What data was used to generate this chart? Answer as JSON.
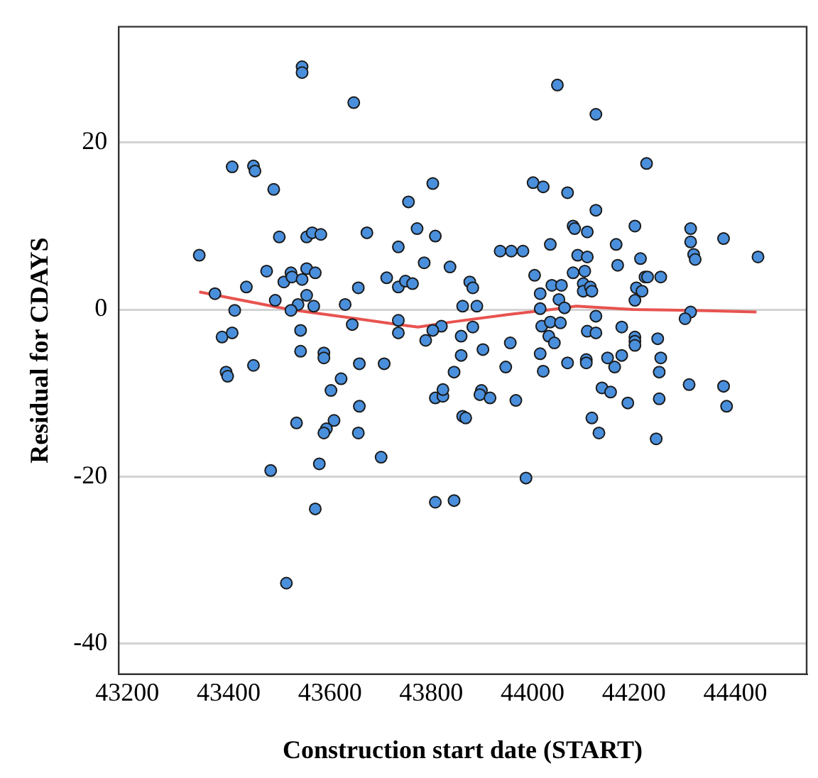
{
  "chart_data": {
    "type": "scatter",
    "xlabel": "Construction start date (START)",
    "ylabel": "Residual for CDAYS",
    "xlim": [
      43183,
      44541
    ],
    "ylim": [
      -43.7,
      33.9
    ],
    "xticks": [
      43200,
      43400,
      43600,
      43800,
      44000,
      44200,
      44400
    ],
    "yticks": [
      -40,
      -20,
      0,
      20
    ],
    "grid": "y",
    "marker": "circle",
    "series": [
      {
        "color": "#4a8fdc",
        "x": [
          43545,
          43545,
          43647,
          43407,
          43449,
          43452,
          43489,
          43803,
          43755,
          43500,
          43554,
          43565,
          43582,
          43673,
          43772,
          43808,
          43735,
          43342,
          43786,
          43837,
          43475,
          43523,
          43554,
          43571,
          43509,
          43525,
          43545,
          43435,
          43712,
          43735,
          43749,
          43763,
          43656,
          43373,
          43554,
          43492,
          43537,
          43568,
          43630,
          43412,
          43523,
          43862,
          43644,
          43735,
          43735,
          43820,
          43803,
          43789,
          43387,
          43407,
          43542,
          43859,
          43542,
          43588,
          43588,
          43395,
          43398,
          43449,
          43658,
          43707,
          43622,
          43602,
          43658,
          43608,
          43593,
          43588,
          43534,
          43656,
          43579,
          43701,
          43483,
          43571,
          43514,
          43808,
          43845,
          43845,
          43859,
          43808,
          43823,
          43823,
          43862,
          44049,
          44125,
          44225,
          44001,
          44021,
          44069,
          44125,
          44080,
          44083,
          44108,
          44202,
          44312,
          44377,
          44312,
          44035,
          44165,
          43936,
          43958,
          43981,
          44089,
          44108,
          44213,
          44318,
          44321,
          44445,
          44168,
          44004,
          44080,
          44103,
          44222,
          44227,
          44253,
          43876,
          43882,
          44038,
          44057,
          44100,
          44100,
          44114,
          44117,
          44015,
          44205,
          44216,
          44052,
          44063,
          43890,
          44202,
          44015,
          44125,
          44312,
          44301,
          43882,
          44018,
          44035,
          44055,
          44176,
          44032,
          44108,
          44125,
          43956,
          44202,
          44202,
          44202,
          44247,
          43902,
          44043,
          43947,
          44015,
          44021,
          44069,
          44106,
          44106,
          44148,
          44176,
          44162,
          44253,
          44250,
          43899,
          43896,
          43916,
          43868,
          43967,
          44137,
          44154,
          44188,
          44250,
          44117,
          44131,
          44244,
          44309,
          44377,
          44383,
          43987
        ],
        "values": [
          29.1,
          28.4,
          24.8,
          17.1,
          17.2,
          16.6,
          14.4,
          15.1,
          12.9,
          8.7,
          8.7,
          9.2,
          9.0,
          9.2,
          9.7,
          8.8,
          7.5,
          6.5,
          5.6,
          5.1,
          4.6,
          4.4,
          4.9,
          4.4,
          3.3,
          3.9,
          3.6,
          2.7,
          3.8,
          2.7,
          3.4,
          3.1,
          2.6,
          1.9,
          1.7,
          1.1,
          0.6,
          0.4,
          0.6,
          -0.1,
          -0.1,
          0.4,
          -1.8,
          -1.3,
          -2.8,
          -2.0,
          -2.5,
          -3.7,
          -3.3,
          -2.8,
          -2.5,
          -3.2,
          -5.0,
          -5.2,
          -5.8,
          -7.5,
          -8.0,
          -6.7,
          -6.5,
          -6.5,
          -8.3,
          -9.7,
          -11.6,
          -13.3,
          -14.3,
          -14.8,
          -13.6,
          -14.8,
          -18.5,
          -17.7,
          -19.3,
          -23.9,
          -32.8,
          -23.1,
          -22.9,
          -7.5,
          -5.5,
          -10.6,
          -10.4,
          -9.6,
          -12.8,
          26.9,
          23.4,
          17.5,
          15.2,
          14.7,
          14.0,
          11.9,
          10.0,
          9.7,
          9.3,
          10.0,
          9.7,
          8.5,
          8.1,
          7.8,
          7.8,
          7.0,
          7.0,
          7.0,
          6.5,
          6.3,
          6.1,
          6.6,
          6.0,
          6.3,
          5.3,
          4.1,
          4.4,
          4.6,
          3.9,
          3.9,
          3.9,
          3.3,
          2.6,
          2.9,
          2.9,
          3.1,
          2.2,
          2.7,
          2.2,
          1.9,
          2.6,
          2.2,
          1.2,
          0.2,
          0.4,
          1.1,
          0.1,
          -0.8,
          -0.3,
          -1.1,
          -2.1,
          -2.0,
          -1.5,
          -1.6,
          -2.1,
          -3.2,
          -2.6,
          -2.8,
          -4.0,
          -3.3,
          -3.8,
          -4.3,
          -3.5,
          -4.8,
          -4.0,
          -6.9,
          -5.3,
          -7.4,
          -6.4,
          -6.0,
          -6.4,
          -5.8,
          -5.5,
          -6.9,
          -5.8,
          -7.5,
          -9.7,
          -10.2,
          -10.6,
          -13.0,
          -10.9,
          -9.4,
          -9.9,
          -11.2,
          -10.7,
          -13.0,
          -14.8,
          -15.5,
          -9.0,
          -9.2,
          -11.6,
          -20.2
        ]
      },
      {
        "type": "line",
        "marker": "none",
        "color": "#e8534f",
        "x": [
          43342,
          43520,
          43641,
          43735,
          43774,
          43840,
          43953,
          44038,
          44086,
          44199,
          44312,
          44442
        ],
        "values": [
          2.1,
          0,
          -1.0,
          -1.8,
          -2.1,
          -1.5,
          -0.6,
          0,
          0.4,
          0,
          -0.1,
          -0.3
        ]
      }
    ]
  }
}
